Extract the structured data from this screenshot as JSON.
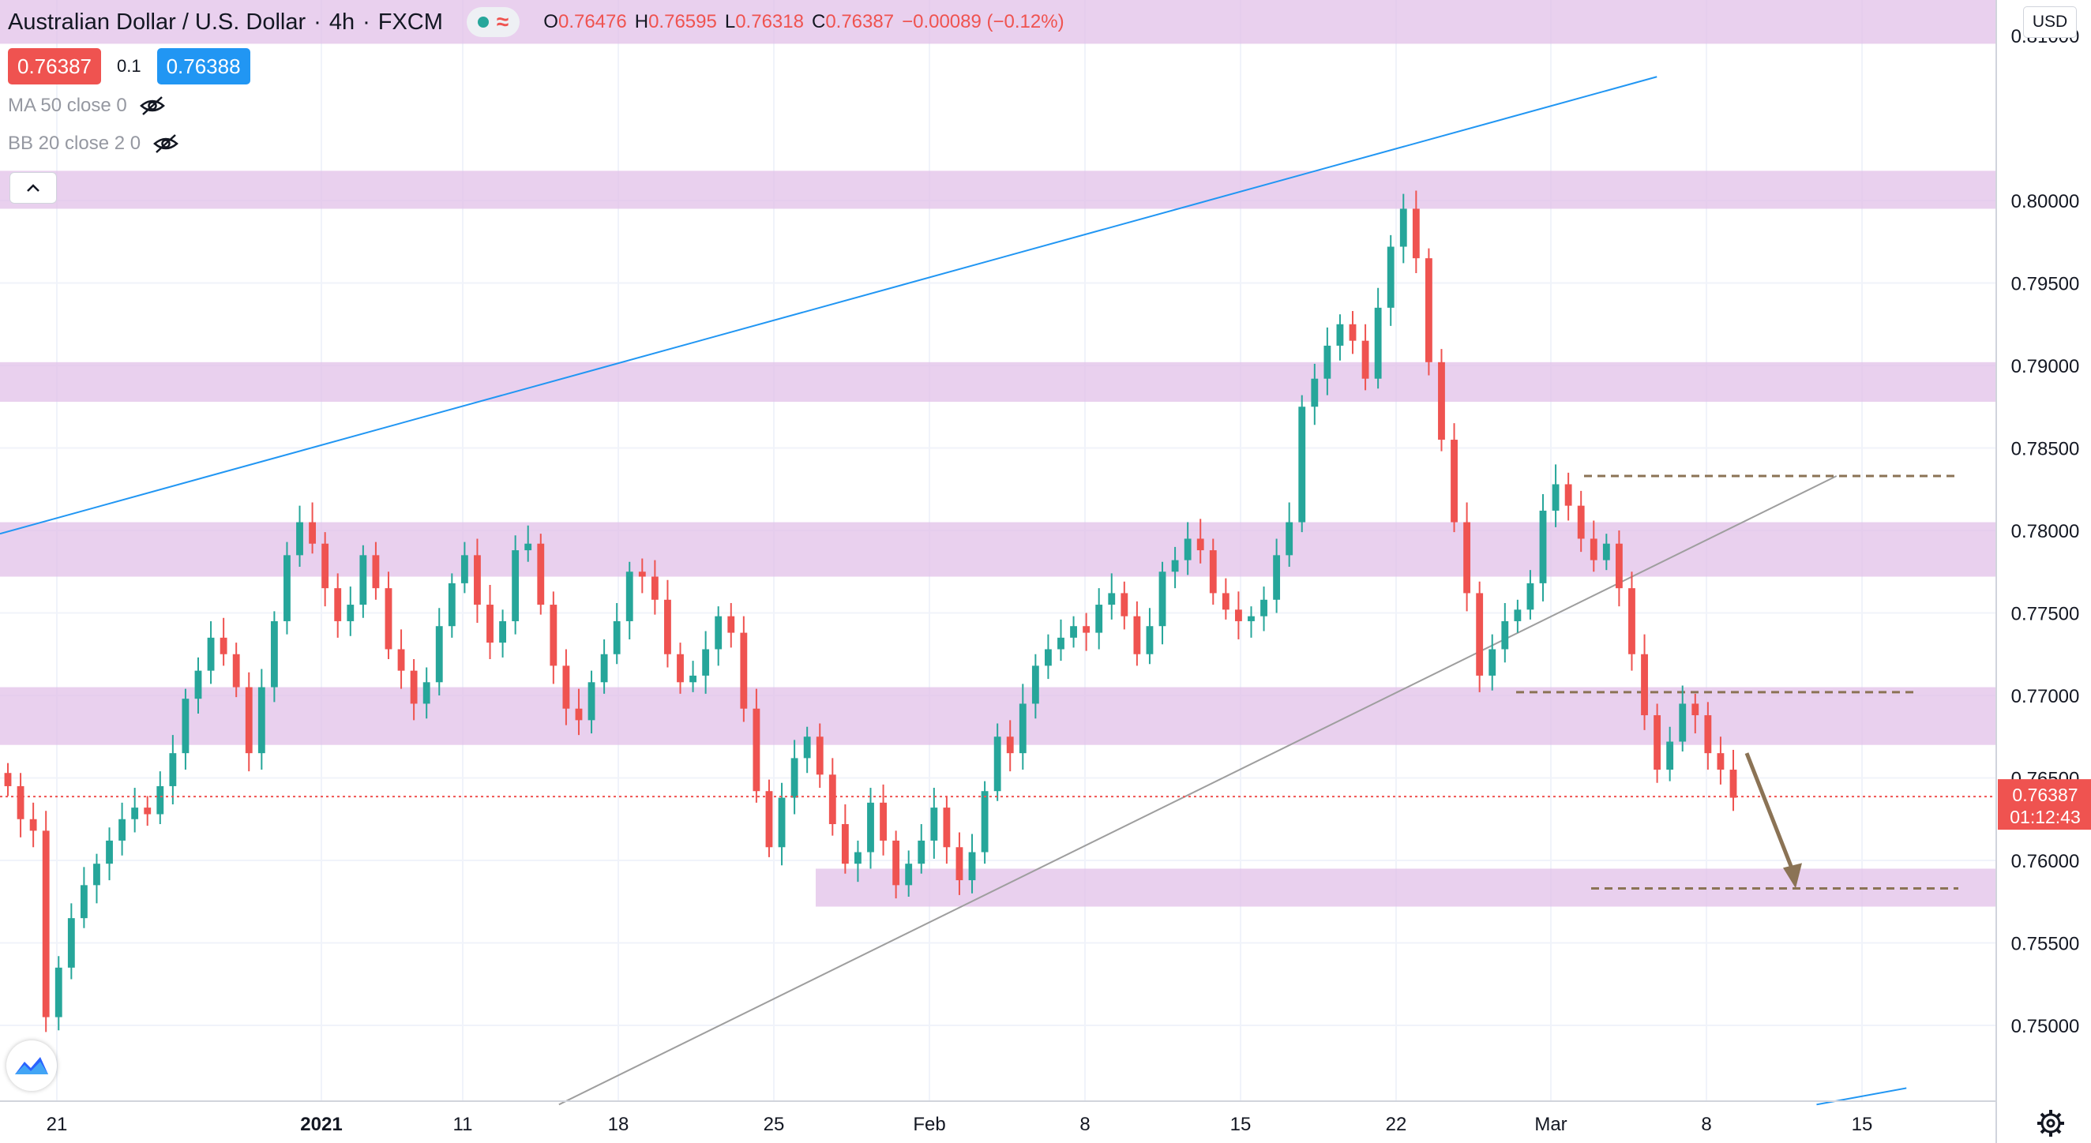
{
  "header": {
    "symbol": "Australian Dollar / U.S. Dollar",
    "interval": "4h",
    "exchange": "FXCM",
    "open_label": "O",
    "open": "0.76476",
    "high_label": "H",
    "high": "0.76595",
    "low_label": "L",
    "low": "0.76318",
    "close_label": "C",
    "close": "0.76387",
    "change": "−0.00089 (−0.12%)"
  },
  "trade": {
    "sell_price": "0.76387",
    "spread": "0.1",
    "buy_price": "0.76388"
  },
  "indicators": [
    {
      "label": "MA 50 close 0"
    },
    {
      "label": "BB 20 close 2 0"
    }
  ],
  "currency": "USD",
  "last_price_label": {
    "price": "0.76387",
    "countdown": "01:12:43"
  },
  "icons": {
    "collapse": "chevron-up-icon",
    "visibility": "eye-off-icon",
    "logo": "tradingview-logo-icon",
    "settings": "gear-icon"
  },
  "colors": {
    "bull": "#26a69a",
    "bear": "#ef5350",
    "zone": "#e1bee7",
    "trendline_blue": "#2196f3",
    "trendline_gray": "#9e9e9e",
    "dash": "#8b7355",
    "arrow": "#8b7355"
  },
  "chart_data": {
    "type": "candlestick",
    "y_axis": {
      "min": 0.7452,
      "max": 0.8125,
      "ticks": [
        "0.80000",
        "0.79500",
        "0.79000",
        "0.78500",
        "0.78000",
        "0.77500",
        "0.77000",
        "0.76500",
        "0.76000",
        "0.75500",
        "0.75000"
      ],
      "top_tick_partial": "0.81000"
    },
    "x_axis": {
      "ticks": [
        "21",
        "2021",
        "11",
        "18",
        "25",
        "Feb",
        "8",
        "15",
        "22",
        "Mar",
        "8",
        "15"
      ]
    },
    "zones": [
      {
        "from": 0.8095,
        "to": 0.8125
      },
      {
        "from": 0.7995,
        "to": 0.8018
      },
      {
        "from": 0.7878,
        "to": 0.7902
      },
      {
        "from": 0.7772,
        "to": 0.7805
      },
      {
        "from": 0.767,
        "to": 0.7705
      },
      {
        "from": 0.7572,
        "to": 0.7595,
        "partial": true
      }
    ],
    "levels": [
      0.7833,
      0.7702,
      0.7583
    ],
    "trendlines": [
      {
        "color": "blue",
        "from": [
          0,
          0.7798
        ],
        "to": [
          0.83,
          0.8075
        ]
      },
      {
        "color": "gray",
        "from": [
          0.28,
          0.7452
        ],
        "to": [
          0.92,
          0.7833
        ]
      },
      {
        "color": "blue",
        "from": [
          0.91,
          0.7452
        ],
        "to": [
          0.955,
          0.7462
        ]
      }
    ],
    "forecast_arrow": {
      "from": 0.7665,
      "to": 0.7585
    },
    "series": [
      0.7645,
      0.7625,
      0.7618,
      0.7505,
      0.7535,
      0.7565,
      0.7585,
      0.7598,
      0.7612,
      0.7625,
      0.7632,
      0.7628,
      0.7645,
      0.7665,
      0.7698,
      0.7715,
      0.7735,
      0.7725,
      0.7705,
      0.7665,
      0.7705,
      0.7745,
      0.7785,
      0.7805,
      0.7792,
      0.7765,
      0.7745,
      0.7755,
      0.7785,
      0.7765,
      0.7728,
      0.7715,
      0.7695,
      0.7708,
      0.7742,
      0.7768,
      0.7785,
      0.7755,
      0.7732,
      0.7745,
      0.7788,
      0.7792,
      0.7755,
      0.7718,
      0.7692,
      0.7685,
      0.7708,
      0.7725,
      0.7745,
      0.7775,
      0.7772,
      0.7758,
      0.7725,
      0.7708,
      0.7712,
      0.7728,
      0.7748,
      0.7738,
      0.7692,
      0.7642,
      0.7608,
      0.7638,
      0.7662,
      0.7675,
      0.7652,
      0.7622,
      0.7598,
      0.7605,
      0.7635,
      0.7612,
      0.7585,
      0.7598,
      0.7612,
      0.7632,
      0.7608,
      0.7588,
      0.7605,
      0.7642,
      0.7675,
      0.7665,
      0.7695,
      0.7718,
      0.7728,
      0.7735,
      0.7742,
      0.7738,
      0.7755,
      0.7762,
      0.7748,
      0.7725,
      0.7742,
      0.7775,
      0.7782,
      0.7795,
      0.7788,
      0.7762,
      0.7752,
      0.7745,
      0.7748,
      0.7758,
      0.7785,
      0.7805,
      0.7875,
      0.7892,
      0.7912,
      0.7925,
      0.7915,
      0.7892,
      0.7935,
      0.7972,
      0.7995,
      0.7965,
      0.7902,
      0.7855,
      0.7805,
      0.7762,
      0.7712,
      0.7728,
      0.7745,
      0.7752,
      0.7768,
      0.7812,
      0.7828,
      0.7815,
      0.7795,
      0.7782,
      0.7792,
      0.7765,
      0.7725,
      0.7688,
      0.7655,
      0.7672,
      0.7695,
      0.7688,
      0.7665,
      0.7655,
      0.7638
    ]
  }
}
